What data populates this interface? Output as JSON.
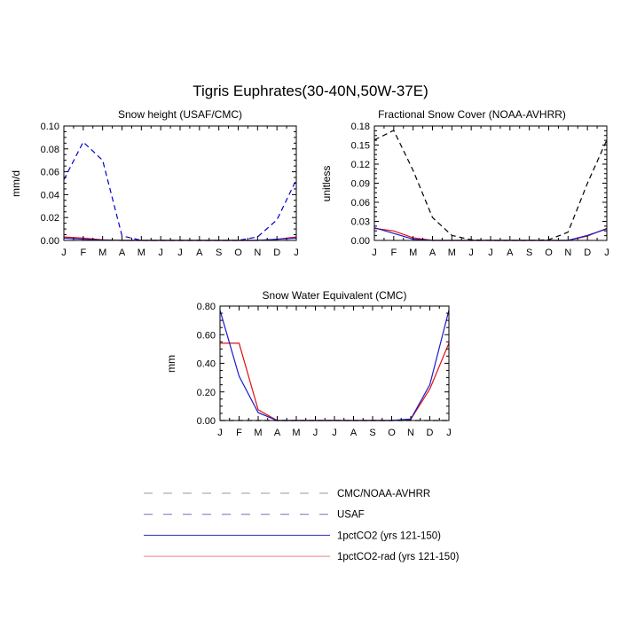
{
  "figure_title": "Tigris Euphrates(30-40N,50W-37E)",
  "colors": {
    "obs": "#000000",
    "usaf": "#0000cc",
    "pctco2": "#1a1acc",
    "pctco2_rad": "#e01010",
    "legend_obs_line": "#9a9a9a",
    "legend_usaf_line": "#7070b0",
    "legend_pctco2_line": "#3030c0",
    "legend_pctco2_rad_line": "#f08080"
  },
  "legend": [
    {
      "label": "CMC/NOAA-AVHRR",
      "style": "dash",
      "color_key": "legend_obs_line"
    },
    {
      "label": "USAF",
      "style": "dash",
      "color_key": "legend_usaf_line"
    },
    {
      "label": "1pctCO2 (yrs 121-150)",
      "style": "solid",
      "color_key": "legend_pctco2_line"
    },
    {
      "label": "1pctCO2-rad (yrs 121-150)",
      "style": "solid",
      "color_key": "legend_pctco2_rad_line"
    }
  ],
  "chart_data": [
    {
      "type": "line",
      "title": "Snow height (USAF/CMC)",
      "ylabel": "mm/d",
      "xlabel": "",
      "categories": [
        "J",
        "F",
        "M",
        "A",
        "M",
        "J",
        "J",
        "A",
        "S",
        "O",
        "N",
        "D",
        "J"
      ],
      "ylim": [
        0,
        0.1
      ],
      "yticks": [
        "0.00",
        "0.02",
        "0.04",
        "0.06",
        "0.08",
        "0.10"
      ],
      "grid": false,
      "series": [
        {
          "name": "USAF",
          "color_key": "usaf",
          "dash": true,
          "values": [
            0.053,
            0.086,
            0.07,
            0.004,
            0.0,
            0.0,
            0.0,
            0.0,
            0.0,
            0.0,
            0.003,
            0.018,
            0.053
          ]
        },
        {
          "name": "1pctCO2-rad (yrs 121-150)",
          "color_key": "pctco2_rad",
          "dash": false,
          "values": [
            0.003,
            0.002,
            0.0005,
            0.0,
            0.0,
            0.0,
            0.0,
            0.0,
            0.0,
            0.0,
            0.0,
            0.001,
            0.003
          ]
        },
        {
          "name": "1pctCO2 (yrs 121-150)",
          "color_key": "pctco2",
          "dash": false,
          "values": [
            0.002,
            0.001,
            0.0003,
            0.0,
            0.0,
            0.0,
            0.0,
            0.0,
            0.0,
            0.0,
            0.0,
            0.001,
            0.002
          ]
        }
      ]
    },
    {
      "type": "line",
      "title": "Fractional Snow Cover (NOAA-AVHRR)",
      "ylabel": "unitless",
      "xlabel": "",
      "categories": [
        "J",
        "F",
        "M",
        "A",
        "M",
        "J",
        "J",
        "A",
        "S",
        "O",
        "N",
        "D",
        "J"
      ],
      "ylim": [
        0,
        0.18
      ],
      "yticks": [
        "0.00",
        "0.03",
        "0.06",
        "0.09",
        "0.12",
        "0.15",
        "0.18"
      ],
      "grid": false,
      "series": [
        {
          "name": "CMC/NOAA-AVHRR",
          "color_key": "obs",
          "dash": true,
          "values": [
            0.158,
            0.173,
            0.11,
            0.036,
            0.008,
            0.001,
            0.0,
            0.0,
            0.0,
            0.001,
            0.013,
            0.09,
            0.158
          ]
        },
        {
          "name": "1pctCO2-rad (yrs 121-150)",
          "color_key": "pctco2_rad",
          "dash": false,
          "values": [
            0.019,
            0.015,
            0.004,
            0.0,
            0.0,
            0.0,
            0.0,
            0.0,
            0.0,
            0.0,
            0.0,
            0.007,
            0.019
          ]
        },
        {
          "name": "1pctCO2 (yrs 121-150)",
          "color_key": "pctco2",
          "dash": false,
          "values": [
            0.02,
            0.011,
            0.002,
            0.0,
            0.0,
            0.0,
            0.0,
            0.0,
            0.0,
            0.0,
            0.0,
            0.008,
            0.018
          ]
        }
      ]
    },
    {
      "type": "line",
      "title": "Snow Water Equivalent (CMC)",
      "ylabel": "mm",
      "xlabel": "",
      "categories": [
        "J",
        "F",
        "M",
        "A",
        "M",
        "J",
        "J",
        "A",
        "S",
        "O",
        "N",
        "D",
        "J"
      ],
      "ylim": [
        0,
        0.8
      ],
      "yticks": [
        "0.00",
        "0.20",
        "0.40",
        "0.60",
        "0.80"
      ],
      "grid": false,
      "series": [
        {
          "name": "CMC/NOAA-AVHRR",
          "color_key": "obs",
          "dash": true,
          "values": [
            0.0,
            0.0,
            0.0,
            0.0,
            0.0,
            0.0,
            0.0,
            0.0,
            0.0,
            0.0,
            0.0,
            0.0,
            0.0
          ]
        },
        {
          "name": "1pctCO2-rad (yrs 121-150)",
          "color_key": "pctco2_rad",
          "dash": false,
          "values": [
            0.54,
            0.54,
            0.075,
            0.0,
            0.0,
            0.0,
            0.0,
            0.0,
            0.0,
            0.0,
            0.008,
            0.22,
            0.54
          ]
        },
        {
          "name": "1pctCO2 (yrs 121-150)",
          "color_key": "pctco2",
          "dash": false,
          "values": [
            0.77,
            0.31,
            0.055,
            0.0,
            0.0,
            0.0,
            0.0,
            0.0,
            0.0,
            0.0,
            0.01,
            0.25,
            0.77
          ]
        }
      ]
    }
  ]
}
